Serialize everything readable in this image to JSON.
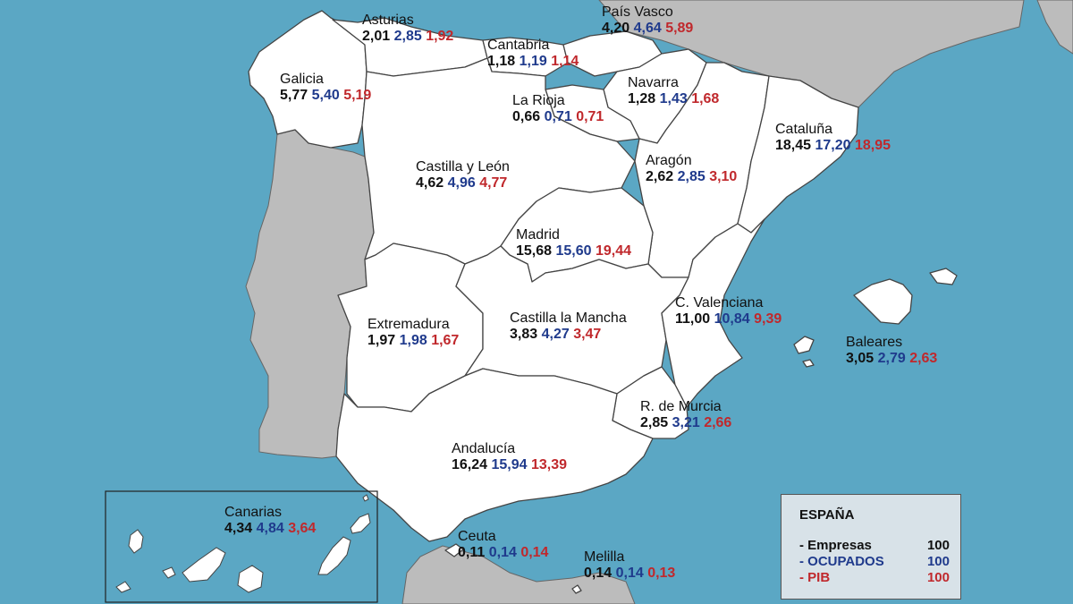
{
  "colors": {
    "sea": "#5ba7c4",
    "land_spain": "#ffffff",
    "land_other": "#bcbcbc",
    "border": "#444444",
    "empresas": "#111111",
    "ocupados": "#1f3a8c",
    "pib": "#c0282c"
  },
  "regions": [
    {
      "id": "asturias",
      "name": "Asturias",
      "empresas": "2,01",
      "ocupados": "2,85",
      "pib": "1,92"
    },
    {
      "id": "pais-vasco",
      "name": "País Vasco",
      "empresas": "4,20",
      "ocupados": "4,64",
      "pib": "5,89"
    },
    {
      "id": "cantabria",
      "name": "Cantabria",
      "empresas": "1,18",
      "ocupados": "1,19",
      "pib": "1,14"
    },
    {
      "id": "navarra",
      "name": "Navarra",
      "empresas": "1,28",
      "ocupados": "1,43",
      "pib": "1,68"
    },
    {
      "id": "galicia",
      "name": "Galicia",
      "empresas": "5,77",
      "ocupados": "5,40",
      "pib": "5,19"
    },
    {
      "id": "la-rioja",
      "name": "La Rioja",
      "empresas": "0,66",
      "ocupados": "0,71",
      "pib": "0,71"
    },
    {
      "id": "cataluna",
      "name": "Cataluña",
      "empresas": "18,45",
      "ocupados": "17,20",
      "pib": "18,95"
    },
    {
      "id": "castilla-leon",
      "name": "Castilla y León",
      "empresas": "4,62",
      "ocupados": "4,96",
      "pib": "4,77"
    },
    {
      "id": "aragon",
      "name": "Aragón",
      "empresas": "2,62",
      "ocupados": "2,85",
      "pib": "3,10"
    },
    {
      "id": "madrid",
      "name": "Madrid",
      "empresas": "15,68",
      "ocupados": "15,60",
      "pib": "19,44"
    },
    {
      "id": "c-valenciana",
      "name": "C. Valenciana",
      "empresas": "11,00",
      "ocupados": "10,84",
      "pib": "9,39"
    },
    {
      "id": "extremadura",
      "name": "Extremadura",
      "empresas": "1,97",
      "ocupados": "1,98",
      "pib": "1,67"
    },
    {
      "id": "castilla-mancha",
      "name": "Castilla la Mancha",
      "empresas": "3,83",
      "ocupados": "4,27",
      "pib": "3,47"
    },
    {
      "id": "baleares",
      "name": "Baleares",
      "empresas": "3,05",
      "ocupados": "2,79",
      "pib": "2,63"
    },
    {
      "id": "murcia",
      "name": "R. de Murcia",
      "empresas": "2,85",
      "ocupados": "3,21",
      "pib": "2,66"
    },
    {
      "id": "andalucia",
      "name": "Andalucía",
      "empresas": "16,24",
      "ocupados": "15,94",
      "pib": "13,39"
    },
    {
      "id": "canarias",
      "name": "Canarias",
      "empresas": "4,34",
      "ocupados": "4,84",
      "pib": "3,64"
    },
    {
      "id": "ceuta",
      "name": "Ceuta",
      "empresas": "0,11",
      "ocupados": "0,14",
      "pib": "0,14"
    },
    {
      "id": "melilla",
      "name": "Melilla",
      "empresas": "0,14",
      "ocupados": "0,14",
      "pib": "0,13"
    }
  ],
  "legend": {
    "title": "ESPAÑA",
    "rows": [
      {
        "label": "- Empresas",
        "value": "100"
      },
      {
        "label": "- OCUPADOS",
        "value": "100"
      },
      {
        "label": "- PIB",
        "value": "100"
      }
    ]
  }
}
